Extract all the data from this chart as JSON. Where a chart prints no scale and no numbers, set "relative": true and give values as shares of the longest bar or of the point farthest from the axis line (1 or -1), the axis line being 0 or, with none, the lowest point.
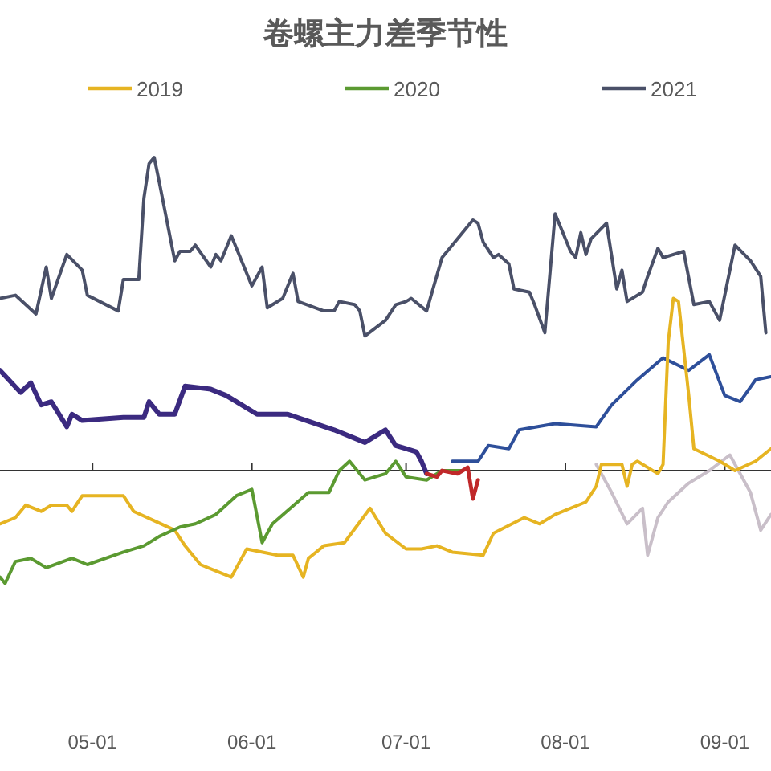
{
  "chart_data": {
    "type": "line",
    "title": "卷螺主力差季节性",
    "relative": true,
    "legend": "top",
    "xlim": [
      "--04-13",
      "--09-10"
    ],
    "xticks": [
      {
        "value": "--05-01",
        "label": "05-01"
      },
      {
        "value": "--06-01",
        "label": "06-01"
      },
      {
        "value": "--07-01",
        "label": "07-01"
      },
      {
        "value": "--08-01",
        "label": "08-01"
      },
      {
        "value": "--09-01",
        "label": "09-01"
      }
    ],
    "series": [
      {
        "name": "2019",
        "color": "#e6b422",
        "x": [
          "--04-13",
          "--04-16",
          "--04-18",
          "--04-21",
          "--04-23",
          "--04-26",
          "--04-27",
          "--04-29",
          "--05-07",
          "--05-09",
          "--05-13",
          "--05-17",
          "--05-19",
          "--05-22",
          "--05-28",
          "--05-31",
          "--06-06",
          "--06-09",
          "--06-11",
          "--06-12",
          "--06-15",
          "--06-19",
          "--06-24",
          "--06-27",
          "--07-01",
          "--07-04",
          "--07-07",
          "--07-10",
          "--07-16",
          "--07-18",
          "--07-24",
          "--07-27",
          "--07-30",
          "--08-05",
          "--08-07",
          "--08-08",
          "--08-12",
          "--08-13",
          "--08-14",
          "--08-15",
          "--08-19",
          "--08-20",
          "--08-21",
          "--08-22",
          "--08-23",
          "--08-25",
          "--08-26",
          "--08-31",
          "--09-03",
          "--09-07",
          "--09-10"
        ],
        "values": [
          -0.17,
          -0.15,
          -0.11,
          -0.13,
          -0.11,
          -0.11,
          -0.13,
          -0.08,
          -0.08,
          -0.13,
          -0.16,
          -0.19,
          -0.24,
          -0.3,
          -0.34,
          -0.25,
          -0.27,
          -0.27,
          -0.34,
          -0.28,
          -0.24,
          -0.23,
          -0.12,
          -0.2,
          -0.25,
          -0.25,
          -0.24,
          -0.26,
          -0.27,
          -0.2,
          -0.15,
          -0.17,
          -0.14,
          -0.1,
          -0.05,
          0.02,
          0.02,
          -0.05,
          0.02,
          0.03,
          -0.01,
          0.02,
          0.41,
          0.55,
          0.54,
          0.24,
          0.07,
          0.03,
          0.0,
          0.03,
          0.07
        ]
      },
      {
        "name": "2020",
        "color": "#5b9a31",
        "x": [
          "--04-13",
          "--04-14",
          "--04-16",
          "--04-19",
          "--04-22",
          "--04-27",
          "--04-30",
          "--05-07",
          "--05-11",
          "--05-14",
          "--05-18",
          "--05-21",
          "--05-25",
          "--05-29",
          "--06-01",
          "--06-03",
          "--06-05",
          "--06-12",
          "--06-16",
          "--06-18",
          "--06-20",
          "--06-23",
          "--06-27",
          "--06-29",
          "--07-01",
          "--07-05",
          "--07-08",
          "--07-12"
        ],
        "values": [
          -0.34,
          -0.36,
          -0.29,
          -0.28,
          -0.31,
          -0.28,
          -0.3,
          -0.26,
          -0.24,
          -0.21,
          -0.18,
          -0.17,
          -0.14,
          -0.08,
          -0.06,
          -0.23,
          -0.17,
          -0.07,
          -0.07,
          0.0,
          0.03,
          -0.03,
          -0.01,
          0.03,
          -0.02,
          -0.03,
          0.0,
          0.0
        ]
      },
      {
        "name": "2021",
        "color": "#4a5068",
        "x": [
          "--04-13",
          "--04-16",
          "--04-20",
          "--04-22",
          "--04-23",
          "--04-26",
          "--04-29",
          "--04-30",
          "--05-06",
          "--05-07",
          "--05-10",
          "--05-11",
          "--05-12",
          "--05-13",
          "--05-14",
          "--05-17",
          "--05-18",
          "--05-20",
          "--05-21",
          "--05-24",
          "--05-25",
          "--05-26",
          "--05-28",
          "--06-01",
          "--06-03",
          "--06-04",
          "--06-07",
          "--06-09",
          "--06-10",
          "--06-15",
          "--06-17",
          "--06-18",
          "--06-21",
          "--06-22",
          "--06-23",
          "--06-27",
          "--06-29",
          "--07-01",
          "--07-02",
          "--07-05",
          "--07-08",
          "--07-14",
          "--07-15",
          "--07-16",
          "--07-18",
          "--07-19",
          "--07-21",
          "--07-22",
          "--07-25",
          "--07-26",
          "--07-28",
          "--07-30",
          "--08-02",
          "--08-03",
          "--08-04",
          "--08-05",
          "--08-06",
          "--08-09",
          "--08-11",
          "--08-12",
          "--08-13",
          "--08-16",
          "--08-17",
          "--08-19",
          "--08-20",
          "--08-24",
          "--08-26",
          "--08-29",
          "--08-31",
          "--09-03",
          "--09-06",
          "--09-08",
          "--09-09"
        ],
        "values": [
          0.55,
          0.56,
          0.5,
          0.65,
          0.55,
          0.69,
          0.64,
          0.56,
          0.51,
          0.61,
          0.61,
          0.87,
          0.98,
          1.0,
          0.92,
          0.67,
          0.7,
          0.7,
          0.72,
          0.65,
          0.69,
          0.67,
          0.75,
          0.59,
          0.65,
          0.52,
          0.55,
          0.63,
          0.54,
          0.51,
          0.51,
          0.54,
          0.53,
          0.51,
          0.43,
          0.48,
          0.53,
          0.54,
          0.55,
          0.51,
          0.68,
          0.8,
          0.79,
          0.73,
          0.68,
          0.69,
          0.66,
          0.58,
          0.57,
          0.53,
          0.44,
          0.82,
          0.7,
          0.68,
          0.76,
          0.69,
          0.74,
          0.79,
          0.58,
          0.64,
          0.54,
          0.57,
          0.62,
          0.71,
          0.68,
          0.7,
          0.53,
          0.54,
          0.48,
          0.72,
          0.67,
          0.62,
          0.44
        ]
      },
      {
        "color": "#3b2a80",
        "x": [
          "--04-13",
          "--04-17",
          "--04-19",
          "--04-21",
          "--04-23",
          "--04-26",
          "--04-27",
          "--04-29",
          "--05-07",
          "--05-11",
          "--05-12",
          "--05-14",
          "--05-17",
          "--05-19",
          "--05-24",
          "--05-27",
          "--06-02",
          "--06-08",
          "--06-17",
          "--06-23",
          "--06-27",
          "--06-29",
          "--07-01",
          "--07-03",
          "--07-04",
          "--07-05"
        ],
        "values": [
          0.32,
          0.25,
          0.28,
          0.21,
          0.22,
          0.14,
          0.18,
          0.16,
          0.17,
          0.17,
          0.22,
          0.18,
          0.18,
          0.27,
          0.26,
          0.24,
          0.18,
          0.18,
          0.13,
          0.09,
          0.13,
          0.08,
          0.07,
          0.06,
          0.03,
          -0.01
        ]
      },
      {
        "color": "#c0282a",
        "x": [
          "--07-05",
          "--07-07",
          "--07-08",
          "--07-11",
          "--07-13",
          "--07-14",
          "--07-15"
        ],
        "values": [
          -0.01,
          -0.02,
          0.0,
          -0.01,
          0.01,
          -0.09,
          -0.03
        ]
      },
      {
        "color": "#2e4f9a",
        "x": [
          "--07-10",
          "--07-15",
          "--07-17",
          "--07-21",
          "--07-23",
          "--07-30",
          "--08-07",
          "--08-10",
          "--08-15",
          "--08-20",
          "--08-25",
          "--08-29",
          "--09-01",
          "--09-04",
          "--09-07",
          "--09-10"
        ],
        "values": [
          0.03,
          0.03,
          0.08,
          0.07,
          0.13,
          0.15,
          0.14,
          0.21,
          0.29,
          0.36,
          0.32,
          0.37,
          0.24,
          0.22,
          0.29,
          0.3
        ]
      },
      {
        "color": "#c9bfc9",
        "x": [
          "--08-07",
          "--08-10",
          "--08-13",
          "--08-16",
          "--08-17",
          "--08-19",
          "--08-21",
          "--08-25",
          "--08-29",
          "--09-02",
          "--09-06",
          "--09-08",
          "--09-10"
        ],
        "values": [
          0.02,
          -0.07,
          -0.17,
          -0.12,
          -0.27,
          -0.15,
          -0.1,
          -0.04,
          0.0,
          0.05,
          -0.07,
          -0.19,
          -0.14
        ]
      }
    ]
  }
}
